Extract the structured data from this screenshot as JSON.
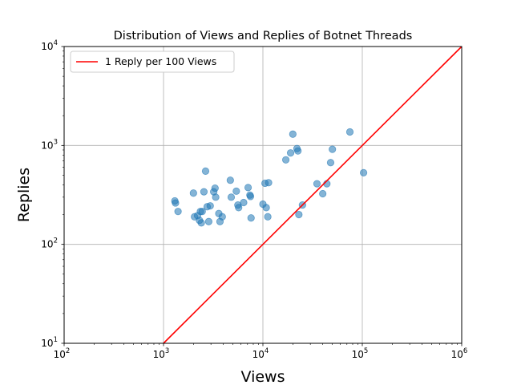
{
  "chart_data": {
    "type": "scatter",
    "title": "Distribution of Views and Replies of Botnet Threads",
    "xlabel": "Views",
    "ylabel": "Replies",
    "xscale": "log",
    "yscale": "log",
    "xlim": [
      100,
      1000000
    ],
    "ylim": [
      10,
      10000
    ],
    "grid": true,
    "legend_position": "top-left",
    "x_ticks": [
      {
        "base": "10",
        "exp": "2"
      },
      {
        "base": "10",
        "exp": "3"
      },
      {
        "base": "10",
        "exp": "4"
      },
      {
        "base": "10",
        "exp": "5"
      },
      {
        "base": "10",
        "exp": "6"
      }
    ],
    "y_ticks": [
      {
        "base": "10",
        "exp": "1"
      },
      {
        "base": "10",
        "exp": "2"
      },
      {
        "base": "10",
        "exp": "3"
      },
      {
        "base": "10",
        "exp": "4"
      }
    ],
    "scatter_color": "#1f77b4",
    "line_color": "#ff0000",
    "points": [
      [
        1300,
        275
      ],
      [
        1320,
        262
      ],
      [
        1400,
        215
      ],
      [
        2000,
        330
      ],
      [
        2050,
        190
      ],
      [
        2200,
        195
      ],
      [
        2300,
        175
      ],
      [
        2350,
        215
      ],
      [
        2400,
        165
      ],
      [
        2450,
        215
      ],
      [
        2550,
        340
      ],
      [
        2650,
        550
      ],
      [
        2750,
        240
      ],
      [
        2850,
        170
      ],
      [
        2950,
        245
      ],
      [
        3200,
        340
      ],
      [
        3300,
        370
      ],
      [
        3350,
        300
      ],
      [
        3600,
        205
      ],
      [
        3700,
        170
      ],
      [
        3900,
        190
      ],
      [
        4700,
        445
      ],
      [
        4800,
        300
      ],
      [
        5400,
        345
      ],
      [
        5600,
        250
      ],
      [
        5700,
        235
      ],
      [
        6400,
        265
      ],
      [
        7100,
        375
      ],
      [
        7400,
        315
      ],
      [
        7500,
        305
      ],
      [
        7600,
        185
      ],
      [
        10000,
        255
      ],
      [
        10500,
        415
      ],
      [
        10800,
        235
      ],
      [
        11200,
        190
      ],
      [
        11400,
        420
      ],
      [
        17000,
        715
      ],
      [
        19000,
        840
      ],
      [
        20000,
        1300
      ],
      [
        22000,
        930
      ],
      [
        22500,
        880
      ],
      [
        23000,
        200
      ],
      [
        25000,
        250
      ],
      [
        35000,
        410
      ],
      [
        40000,
        325
      ],
      [
        44000,
        410
      ],
      [
        48000,
        670
      ],
      [
        50000,
        915
      ],
      [
        75000,
        1370
      ],
      [
        103000,
        530
      ]
    ],
    "series": [
      {
        "name": "1 Reply per 100 Views",
        "type": "line",
        "x": [
          1000,
          1000000
        ],
        "y": [
          10,
          10000
        ]
      }
    ]
  }
}
